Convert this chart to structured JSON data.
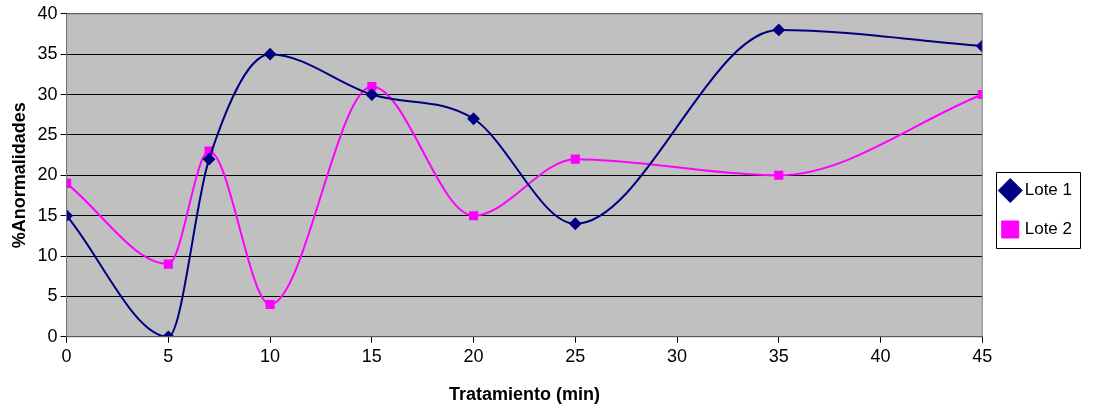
{
  "chart_data": {
    "type": "line",
    "xlabel": "Tratamiento (min)",
    "ylabel": "%Anormalidades",
    "x": [
      0,
      5,
      7,
      10,
      15,
      20,
      25,
      35,
      45
    ],
    "series": [
      {
        "name": "Lote 1",
        "color": "#000080",
        "marker": "diamond",
        "values": [
          15,
          0,
          22,
          35,
          30,
          27,
          14,
          38,
          36
        ]
      },
      {
        "name": "Lote 2",
        "color": "#ff00ff",
        "marker": "square",
        "values": [
          19,
          9,
          23,
          4,
          31,
          15,
          22,
          20,
          30
        ]
      }
    ],
    "xlim": [
      0,
      45
    ],
    "xticks": [
      0,
      5,
      10,
      15,
      20,
      25,
      30,
      35,
      40,
      45
    ],
    "ylim": [
      0,
      40
    ],
    "yticks": [
      0,
      5,
      10,
      15,
      20,
      25,
      30,
      35,
      40
    ],
    "grid": "y",
    "legend": "right",
    "line_style": "solid"
  }
}
